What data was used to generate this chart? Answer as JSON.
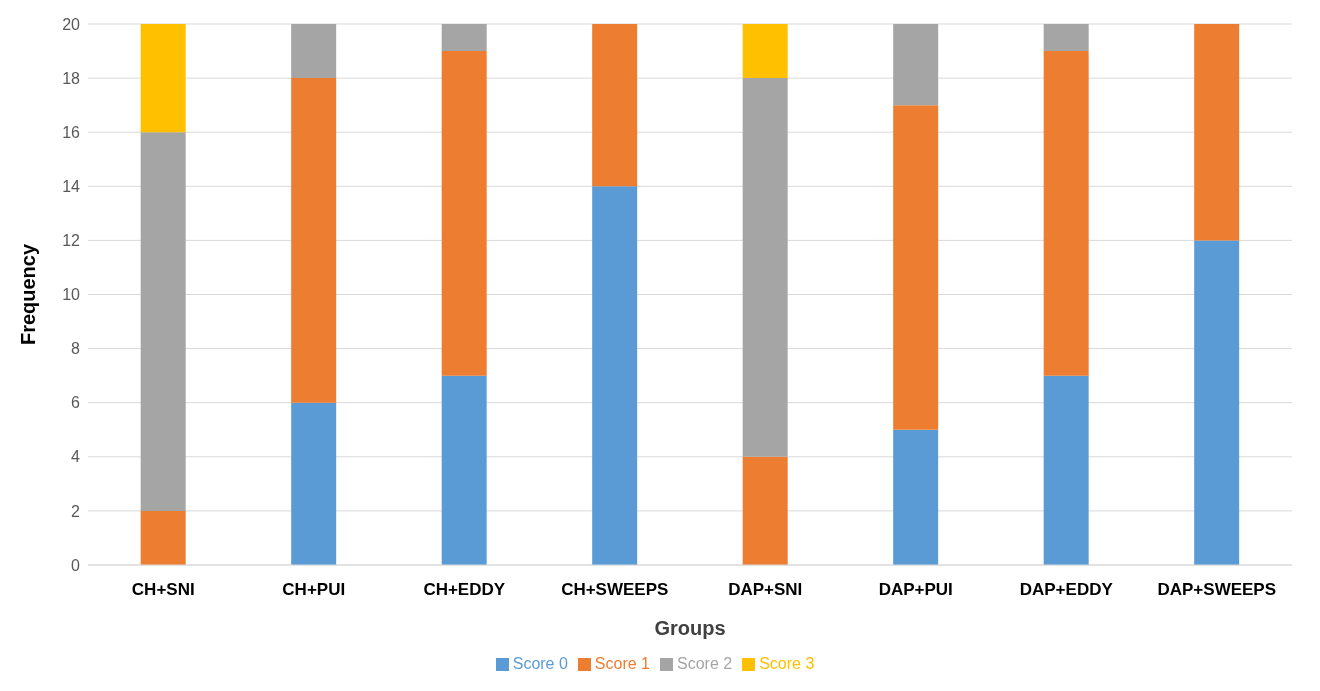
{
  "chart_data": {
    "type": "bar",
    "stacked": true,
    "xlabel": "Groups",
    "ylabel": "Frequency",
    "categories": [
      "CH+SNI",
      "CH+PUI",
      "CH+EDDY",
      "CH+SWEEPS",
      "DAP+SNI",
      "DAP+PUI",
      "DAP+EDDY",
      "DAP+SWEEPS"
    ],
    "series": [
      {
        "name": "Score 0",
        "color": "#5b9bd5",
        "values": [
          0,
          6,
          7,
          14,
          0,
          5,
          7,
          12
        ]
      },
      {
        "name": "Score 1",
        "color": "#ed7d31",
        "values": [
          2,
          12,
          12,
          6,
          4,
          12,
          12,
          8
        ]
      },
      {
        "name": "Score 2",
        "color": "#a5a5a5",
        "values": [
          14,
          2,
          1,
          0,
          14,
          3,
          1,
          0
        ]
      },
      {
        "name": "Score 3",
        "color": "#ffc000",
        "values": [
          4,
          0,
          0,
          0,
          2,
          0,
          0,
          0
        ]
      }
    ],
    "ylim": [
      0,
      20
    ],
    "yticks": [
      0,
      2,
      4,
      6,
      8,
      10,
      12,
      14,
      16,
      18,
      20
    ],
    "grid": "y",
    "legend": "bottom"
  }
}
